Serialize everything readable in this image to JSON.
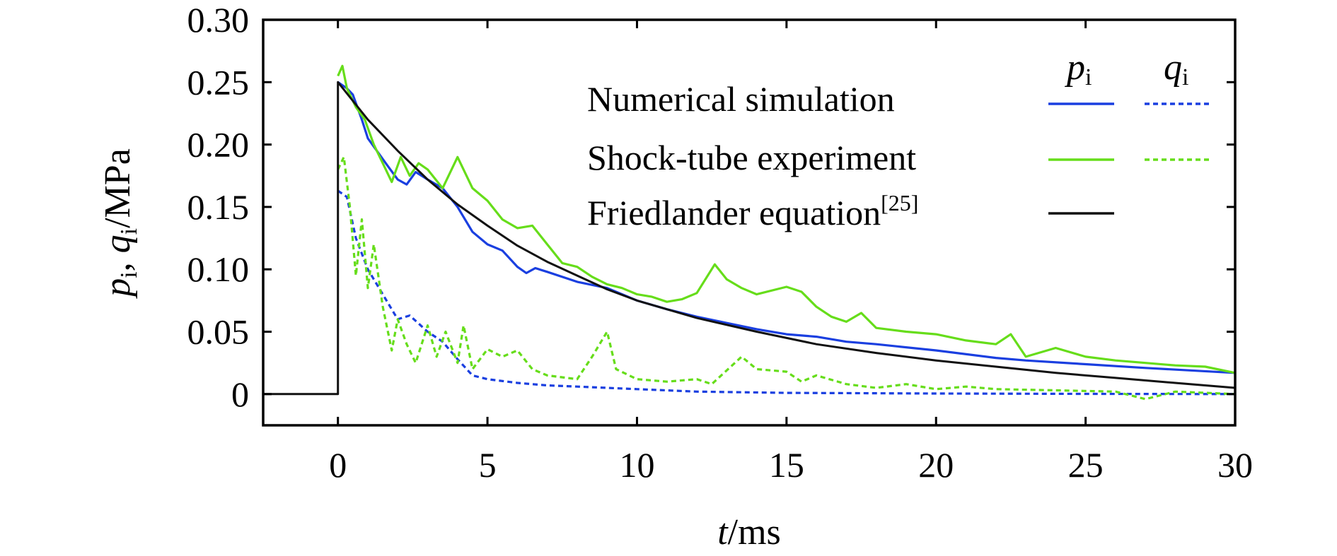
{
  "colors": {
    "simulation": "#1a3fe0",
    "experiment": "#66dd1a",
    "friedlander": "#111111",
    "axis": "#000000"
  },
  "axes": {
    "xlabel_var": "t",
    "xlabel_unit": "/ms",
    "ylabel_p": "p",
    "ylabel_q": "q",
    "ylabel_sub": "i",
    "ylabel_sep": ", ",
    "ylabel_unit": "/MPa"
  },
  "legend": {
    "col_p_var": "p",
    "col_q_var": "q",
    "col_sub": "i",
    "rows": [
      {
        "label": "Numerical simulation",
        "sup": ""
      },
      {
        "label": "Shock-tube experiment",
        "sup": ""
      },
      {
        "label": "Friedlander equation",
        "sup": "[25]"
      }
    ]
  },
  "chart_data": {
    "type": "line",
    "x_unit": "ms",
    "y_unit": "MPa",
    "xlim": [
      -2.5,
      30
    ],
    "ylim": [
      -0.025,
      0.3
    ],
    "xticks": [
      0,
      5,
      10,
      15,
      20,
      25,
      30
    ],
    "xtick_labels": [
      "0",
      "5",
      "10",
      "15",
      "20",
      "25",
      "30"
    ],
    "yticks": [
      0,
      0.05,
      0.1,
      0.15,
      0.2,
      0.25,
      0.3
    ],
    "ytick_labels": [
      "0",
      "0.05",
      "0.10",
      "0.15",
      "0.20",
      "0.25",
      "0.30"
    ],
    "legend_position": "top-right",
    "grid": false,
    "series": [
      {
        "name": "Numerical simulation p_i",
        "style": "solid",
        "color_key": "simulation",
        "points": [
          [
            0,
            0.25
          ],
          [
            0.3,
            0.245
          ],
          [
            0.5,
            0.24
          ],
          [
            0.8,
            0.22
          ],
          [
            1,
            0.205
          ],
          [
            1.3,
            0.195
          ],
          [
            1.6,
            0.185
          ],
          [
            2,
            0.172
          ],
          [
            2.3,
            0.168
          ],
          [
            2.6,
            0.178
          ],
          [
            3,
            0.172
          ],
          [
            3.5,
            0.165
          ],
          [
            4,
            0.15
          ],
          [
            4.5,
            0.13
          ],
          [
            5,
            0.12
          ],
          [
            5.5,
            0.115
          ],
          [
            6,
            0.102
          ],
          [
            6.3,
            0.097
          ],
          [
            6.6,
            0.101
          ],
          [
            7,
            0.098
          ],
          [
            8,
            0.09
          ],
          [
            9,
            0.085
          ],
          [
            10,
            0.075
          ],
          [
            11,
            0.068
          ],
          [
            12,
            0.062
          ],
          [
            13,
            0.057
          ],
          [
            14,
            0.052
          ],
          [
            15,
            0.048
          ],
          [
            16,
            0.046
          ],
          [
            17,
            0.042
          ],
          [
            18,
            0.04
          ],
          [
            20,
            0.035
          ],
          [
            22,
            0.029
          ],
          [
            23,
            0.027
          ],
          [
            25,
            0.024
          ],
          [
            27,
            0.021
          ],
          [
            30,
            0.017
          ]
        ]
      },
      {
        "name": "Numerical simulation q_i",
        "style": "dashed",
        "color_key": "simulation",
        "points": [
          [
            0,
            0.163
          ],
          [
            0.3,
            0.158
          ],
          [
            0.6,
            0.125
          ],
          [
            1,
            0.1
          ],
          [
            1.5,
            0.08
          ],
          [
            2,
            0.06
          ],
          [
            2.4,
            0.063
          ],
          [
            3,
            0.05
          ],
          [
            3.5,
            0.042
          ],
          [
            4,
            0.028
          ],
          [
            4.5,
            0.015
          ],
          [
            5,
            0.012
          ],
          [
            6,
            0.009
          ],
          [
            7,
            0.007
          ],
          [
            8,
            0.006
          ],
          [
            9,
            0.005
          ],
          [
            10,
            0.004
          ],
          [
            12,
            0.002
          ],
          [
            15,
            0.001
          ],
          [
            20,
            0.0005
          ],
          [
            25,
            0.0002
          ],
          [
            30,
            0.0
          ]
        ]
      },
      {
        "name": "Shock-tube experiment p_i",
        "style": "solid",
        "color_key": "experiment",
        "points": [
          [
            0,
            0.255
          ],
          [
            0.15,
            0.263
          ],
          [
            0.3,
            0.245
          ],
          [
            0.6,
            0.23
          ],
          [
            0.9,
            0.22
          ],
          [
            1.2,
            0.2
          ],
          [
            1.5,
            0.185
          ],
          [
            1.8,
            0.17
          ],
          [
            2.1,
            0.19
          ],
          [
            2.4,
            0.175
          ],
          [
            2.7,
            0.185
          ],
          [
            3,
            0.18
          ],
          [
            3.5,
            0.165
          ],
          [
            4,
            0.19
          ],
          [
            4.5,
            0.165
          ],
          [
            5,
            0.155
          ],
          [
            5.5,
            0.14
          ],
          [
            6,
            0.133
          ],
          [
            6.5,
            0.135
          ],
          [
            7,
            0.12
          ],
          [
            7.5,
            0.105
          ],
          [
            8,
            0.102
          ],
          [
            8.5,
            0.094
          ],
          [
            9,
            0.088
          ],
          [
            9.5,
            0.085
          ],
          [
            10,
            0.08
          ],
          [
            10.5,
            0.078
          ],
          [
            11,
            0.074
          ],
          [
            11.5,
            0.076
          ],
          [
            12,
            0.081
          ],
          [
            12.6,
            0.104
          ],
          [
            13,
            0.092
          ],
          [
            13.5,
            0.085
          ],
          [
            14,
            0.08
          ],
          [
            15,
            0.086
          ],
          [
            15.5,
            0.082
          ],
          [
            16,
            0.07
          ],
          [
            16.5,
            0.062
          ],
          [
            17,
            0.058
          ],
          [
            17.5,
            0.065
          ],
          [
            18,
            0.053
          ],
          [
            19,
            0.05
          ],
          [
            20,
            0.048
          ],
          [
            21,
            0.043
          ],
          [
            22,
            0.04
          ],
          [
            22.5,
            0.048
          ],
          [
            23,
            0.03
          ],
          [
            24,
            0.037
          ],
          [
            25,
            0.03
          ],
          [
            26,
            0.027
          ],
          [
            27,
            0.025
          ],
          [
            28,
            0.023
          ],
          [
            29,
            0.022
          ],
          [
            30,
            0.017
          ]
        ]
      },
      {
        "name": "Shock-tube experiment q_i",
        "style": "dashed",
        "color_key": "experiment",
        "points": [
          [
            0,
            0.18
          ],
          [
            0.2,
            0.19
          ],
          [
            0.4,
            0.15
          ],
          [
            0.6,
            0.095
          ],
          [
            0.8,
            0.14
          ],
          [
            1,
            0.085
          ],
          [
            1.2,
            0.12
          ],
          [
            1.5,
            0.07
          ],
          [
            1.8,
            0.035
          ],
          [
            2,
            0.06
          ],
          [
            2.3,
            0.04
          ],
          [
            2.6,
            0.025
          ],
          [
            3,
            0.055
          ],
          [
            3.3,
            0.03
          ],
          [
            3.6,
            0.05
          ],
          [
            4,
            0.025
          ],
          [
            4.2,
            0.055
          ],
          [
            4.5,
            0.02
          ],
          [
            5,
            0.036
          ],
          [
            5.5,
            0.03
          ],
          [
            6,
            0.035
          ],
          [
            6.5,
            0.02
          ],
          [
            7,
            0.015
          ],
          [
            8,
            0.012
          ],
          [
            8.5,
            0.03
          ],
          [
            9,
            0.05
          ],
          [
            9.3,
            0.02
          ],
          [
            10,
            0.012
          ],
          [
            11,
            0.01
          ],
          [
            12,
            0.012
          ],
          [
            12.5,
            0.008
          ],
          [
            13.5,
            0.03
          ],
          [
            14,
            0.02
          ],
          [
            15,
            0.018
          ],
          [
            15.5,
            0.01
          ],
          [
            16,
            0.015
          ],
          [
            17,
            0.008
          ],
          [
            18,
            0.005
          ],
          [
            19,
            0.008
          ],
          [
            20,
            0.004
          ],
          [
            21,
            0.006
          ],
          [
            22,
            0.004
          ],
          [
            24,
            0.003
          ],
          [
            26,
            0.002
          ],
          [
            27,
            -0.004
          ],
          [
            28,
            0.002
          ],
          [
            30,
            0.0
          ]
        ]
      },
      {
        "name": "Friedlander equation",
        "style": "solid",
        "color_key": "friedlander",
        "points": [
          [
            -2.5,
            0
          ],
          [
            0,
            0
          ],
          [
            0,
            0.25
          ],
          [
            1,
            0.22
          ],
          [
            2,
            0.195
          ],
          [
            3,
            0.172
          ],
          [
            4,
            0.152
          ],
          [
            5,
            0.135
          ],
          [
            6,
            0.119
          ],
          [
            7,
            0.106
          ],
          [
            8,
            0.095
          ],
          [
            9,
            0.084
          ],
          [
            10,
            0.075
          ],
          [
            12,
            0.061
          ],
          [
            14,
            0.05
          ],
          [
            16,
            0.04
          ],
          [
            18,
            0.033
          ],
          [
            20,
            0.027
          ],
          [
            22,
            0.022
          ],
          [
            24,
            0.017
          ],
          [
            26,
            0.013
          ],
          [
            28,
            0.009
          ],
          [
            30,
            0.005
          ]
        ]
      }
    ]
  }
}
